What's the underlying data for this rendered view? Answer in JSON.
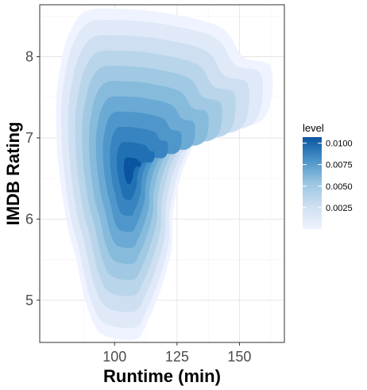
{
  "chart_data": {
    "type": "density_2d_filled",
    "xlabel": "Runtime (min)",
    "ylabel": "IMDB Rating",
    "xlim": [
      70,
      168
    ],
    "ylim": [
      4.48,
      8.64
    ],
    "x_ticks": [
      100,
      125,
      150
    ],
    "y_ticks": [
      5,
      6,
      7,
      8
    ],
    "grid": true,
    "legend": {
      "title": "level",
      "position": "right",
      "range": [
        0.0,
        0.0107
      ],
      "ticks": [
        {
          "value": 0.0025,
          "label": "0.0025"
        },
        {
          "value": 0.005,
          "label": "0.0050"
        },
        {
          "value": 0.0075,
          "label": "0.0075"
        },
        {
          "value": 0.01,
          "label": "0.0100"
        }
      ]
    },
    "density_peak": {
      "runtime": 106,
      "rating": 6.5,
      "level": 0.0105
    },
    "levels": [
      {
        "level": 0.001,
        "color": "#eff3ff"
      },
      {
        "level": 0.002,
        "color": "#dfe9f8"
      },
      {
        "level": 0.003,
        "color": "#cddff1"
      },
      {
        "level": 0.004,
        "color": "#b9d5ea"
      },
      {
        "level": 0.005,
        "color": "#a1c9e3"
      },
      {
        "level": 0.006,
        "color": "#87bbdc"
      },
      {
        "level": 0.007,
        "color": "#6aaad4"
      },
      {
        "level": 0.008,
        "color": "#4f97cb"
      },
      {
        "level": 0.009,
        "color": "#3784c0"
      },
      {
        "level": 0.01,
        "color": "#2070b4"
      },
      {
        "level": 0.0105,
        "color": "#0b55a0"
      }
    ],
    "outer_contour": [
      [
        108.4,
        4.52
      ],
      [
        95.0,
        4.58
      ],
      [
        89.4,
        4.88
      ],
      [
        86.6,
        5.21
      ],
      [
        84.1,
        5.57
      ],
      [
        80.7,
        5.97
      ],
      [
        77.3,
        6.73
      ],
      [
        76.6,
        7.4
      ],
      [
        77.9,
        7.8
      ],
      [
        81.2,
        8.24
      ],
      [
        87.9,
        8.55
      ],
      [
        99.9,
        8.59
      ],
      [
        119.9,
        8.54
      ],
      [
        142.6,
        8.36
      ],
      [
        151.4,
        8.0
      ],
      [
        162.4,
        7.88
      ],
      [
        162.1,
        7.38
      ],
      [
        155.2,
        7.16
      ],
      [
        138.1,
        7.15
      ],
      [
        128.4,
        6.69
      ],
      [
        123.5,
        6.1
      ],
      [
        122.8,
        5.63
      ],
      [
        118.2,
        5.11
      ],
      [
        113.2,
        4.74
      ],
      [
        108.4,
        4.52
      ]
    ]
  }
}
